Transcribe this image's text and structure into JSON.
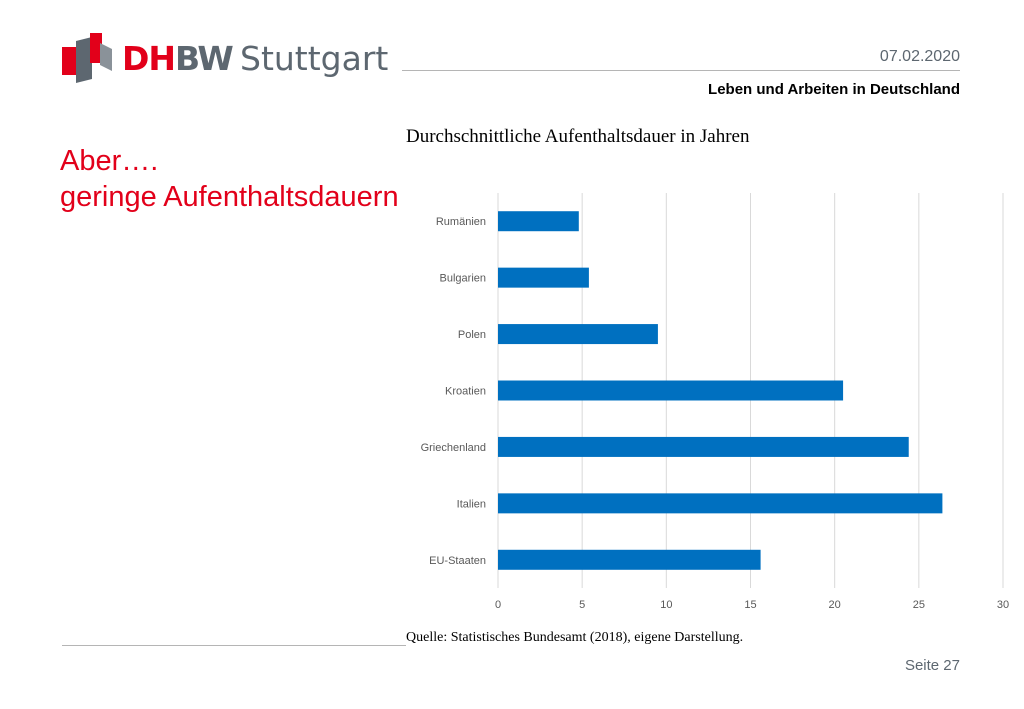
{
  "header": {
    "logo": {
      "mark": "DHBW",
      "text_dh": "DH",
      "text_bw": "BW",
      "city": "Stuttgart"
    },
    "date": "07.02.2020",
    "subtitle": "Leben und Arbeiten in Deutschland"
  },
  "slide": {
    "title_line1": "Aber….",
    "title_line2": "geringe Aufenthaltsdauern"
  },
  "chart_title": "Durchschnittliche Aufenthaltsdauer in Jahren",
  "chart_data": {
    "type": "bar",
    "orientation": "horizontal",
    "title": "Durchschnittliche Aufenthaltsdauer in Jahren",
    "categories": [
      "Rumänien",
      "Bulgarien",
      "Polen",
      "Kroatien",
      "Griechenland",
      "Italien",
      "EU-Staaten"
    ],
    "values": [
      4.8,
      5.4,
      9.5,
      20.5,
      24.4,
      26.4,
      15.6
    ],
    "xlim": [
      0,
      30
    ],
    "xticks": [
      0,
      5,
      10,
      15,
      20,
      25,
      30
    ],
    "grid": "vertical",
    "bar_color": "#0070c0"
  },
  "source": "Quelle: Statistisches Bundesamt (2018), eigene Darstellung.",
  "footer": {
    "page": "Seite 27"
  },
  "colors": {
    "accent": "#e2001a",
    "grey": "#5d6770",
    "bar": "#0070c0"
  }
}
